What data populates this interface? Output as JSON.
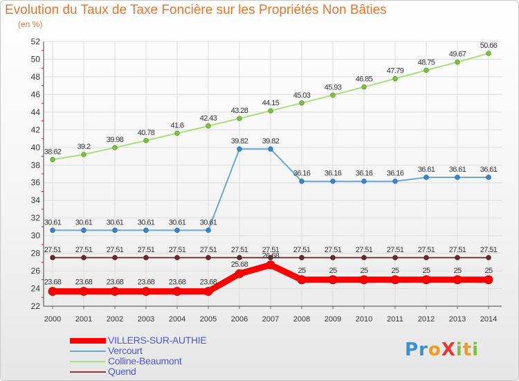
{
  "chart_data": {
    "type": "line",
    "title": "Evolution du Taux de Taxe Foncière sur les Propriétés Non Bâties",
    "subtitle": "(en %)",
    "xlabel": "",
    "ylabel": "",
    "ylim": [
      22,
      52
    ],
    "yticks": [
      22,
      24,
      26,
      28,
      30,
      32,
      34,
      36,
      38,
      40,
      42,
      44,
      46,
      48,
      50,
      52
    ],
    "x": [
      "2000",
      "2001",
      "2002",
      "2003",
      "2004",
      "2005",
      "2006",
      "2007",
      "2008",
      "2009",
      "2010",
      "2011",
      "2012",
      "2013",
      "2014"
    ],
    "grid": true,
    "legend_position": "bottom-left",
    "series": [
      {
        "name": "VILLERS-SUR-AUTHIE",
        "color": "#ff0000",
        "values": [
          23.68,
          23.68,
          23.68,
          23.68,
          23.68,
          23.68,
          25.68,
          26.68,
          25,
          25,
          25,
          25,
          25,
          25,
          25
        ],
        "labels": [
          "23.68",
          "23.68",
          "23.68",
          "23.68",
          "23.68",
          "23.68",
          "25.68",
          "26.68",
          "25",
          "25",
          "25",
          "25",
          "25",
          "25",
          "25"
        ]
      },
      {
        "name": "Vercourt",
        "color": "#6aa6d6",
        "values": [
          30.61,
          30.61,
          30.61,
          30.61,
          30.61,
          30.61,
          39.82,
          39.82,
          36.16,
          36.16,
          36.16,
          36.16,
          36.61,
          36.61,
          36.61
        ],
        "labels": [
          "30.61",
          "30.61",
          "30.61",
          "30.61",
          "30.61",
          "30.61",
          "39.82",
          "39.82",
          "36.16",
          "36.16",
          "36.16",
          "36.16",
          "36.61",
          "36.61",
          "36.61"
        ]
      },
      {
        "name": "Colline-Beaumont",
        "color": "#a6e07a",
        "values": [
          38.62,
          39.2,
          39.98,
          40.78,
          41.6,
          42.43,
          43.28,
          44.15,
          45.03,
          45.93,
          46.85,
          47.79,
          48.75,
          49.67,
          50.66
        ],
        "labels": [
          "38.62",
          "39.2",
          "39.98",
          "40.78",
          "41.6",
          "42.43",
          "43.28",
          "44.15",
          "45.03",
          "45.93",
          "46.85",
          "47.79",
          "48.75",
          "49.67",
          "50.66"
        ]
      },
      {
        "name": "Quend",
        "color": "#8a3a3a",
        "values": [
          27.51,
          27.51,
          27.51,
          27.51,
          27.51,
          27.51,
          27.51,
          27.51,
          27.51,
          27.51,
          27.51,
          27.51,
          27.51,
          27.51,
          27.51
        ],
        "labels": [
          "27.51",
          "27.51",
          "27.51",
          "27.51",
          "27.51",
          "27.51",
          "27.51",
          "27.51",
          "27.51",
          "27.51",
          "27.51",
          "27.51",
          "27.51",
          "27.51",
          "27.51"
        ]
      }
    ]
  },
  "logo": {
    "text": "ProXiti",
    "parts": [
      "Pr",
      "o",
      "X",
      "i",
      "t",
      "i"
    ]
  }
}
